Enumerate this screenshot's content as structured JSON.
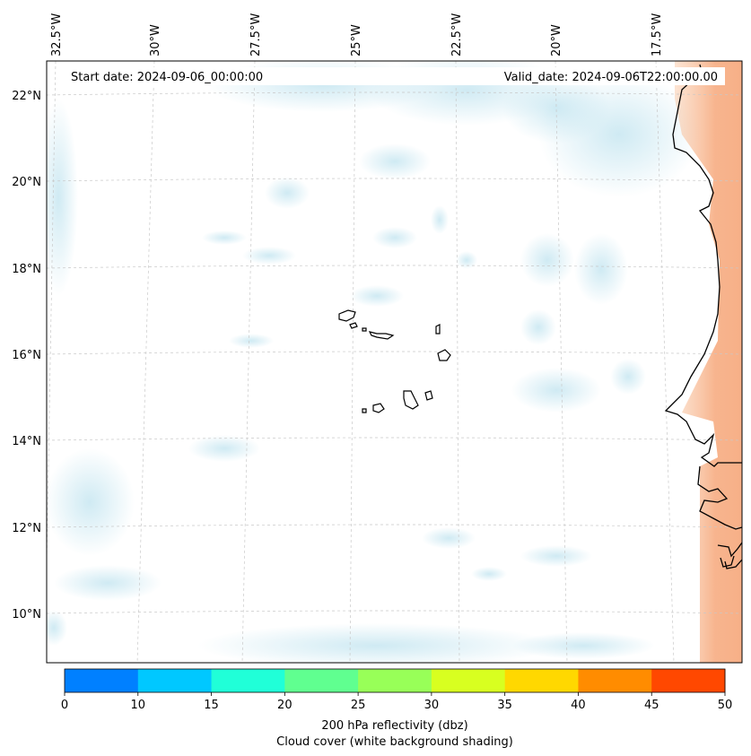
{
  "map": {
    "start_date": "Start date: 2024-09-06_00:00:00",
    "valid_date": "Valid_date: 2024-09-06T22:00:00.00",
    "lon_labels": [
      "32.5°W",
      "30°W",
      "27.5°W",
      "25°W",
      "22.5°W",
      "20°W",
      "17.5°W"
    ],
    "lat_labels": [
      "22°N",
      "20°N",
      "18°N",
      "16°N",
      "14°N",
      "12°N",
      "10°N"
    ],
    "extent": {
      "lon_min": -32.6,
      "lon_max": -15.0,
      "lat_min": 8.9,
      "lat_max": 22.8
    },
    "cloud_color": "#bfe3ef",
    "coast_color": "#000000",
    "land_reflectivity_color": "#f7b58a"
  },
  "colorbar": {
    "ticks": [
      "0",
      "10",
      "15",
      "20",
      "25",
      "30",
      "35",
      "40",
      "45",
      "50"
    ],
    "colors": [
      "#0080ff",
      "#00c8ff",
      "#20ffd8",
      "#60ff90",
      "#98ff58",
      "#d8ff20",
      "#ffd800",
      "#ff8c00",
      "#ff4800"
    ],
    "label_line1": "200 hPa reflectivity (dbz)",
    "label_line2": "Cloud cover (white background shading)"
  }
}
